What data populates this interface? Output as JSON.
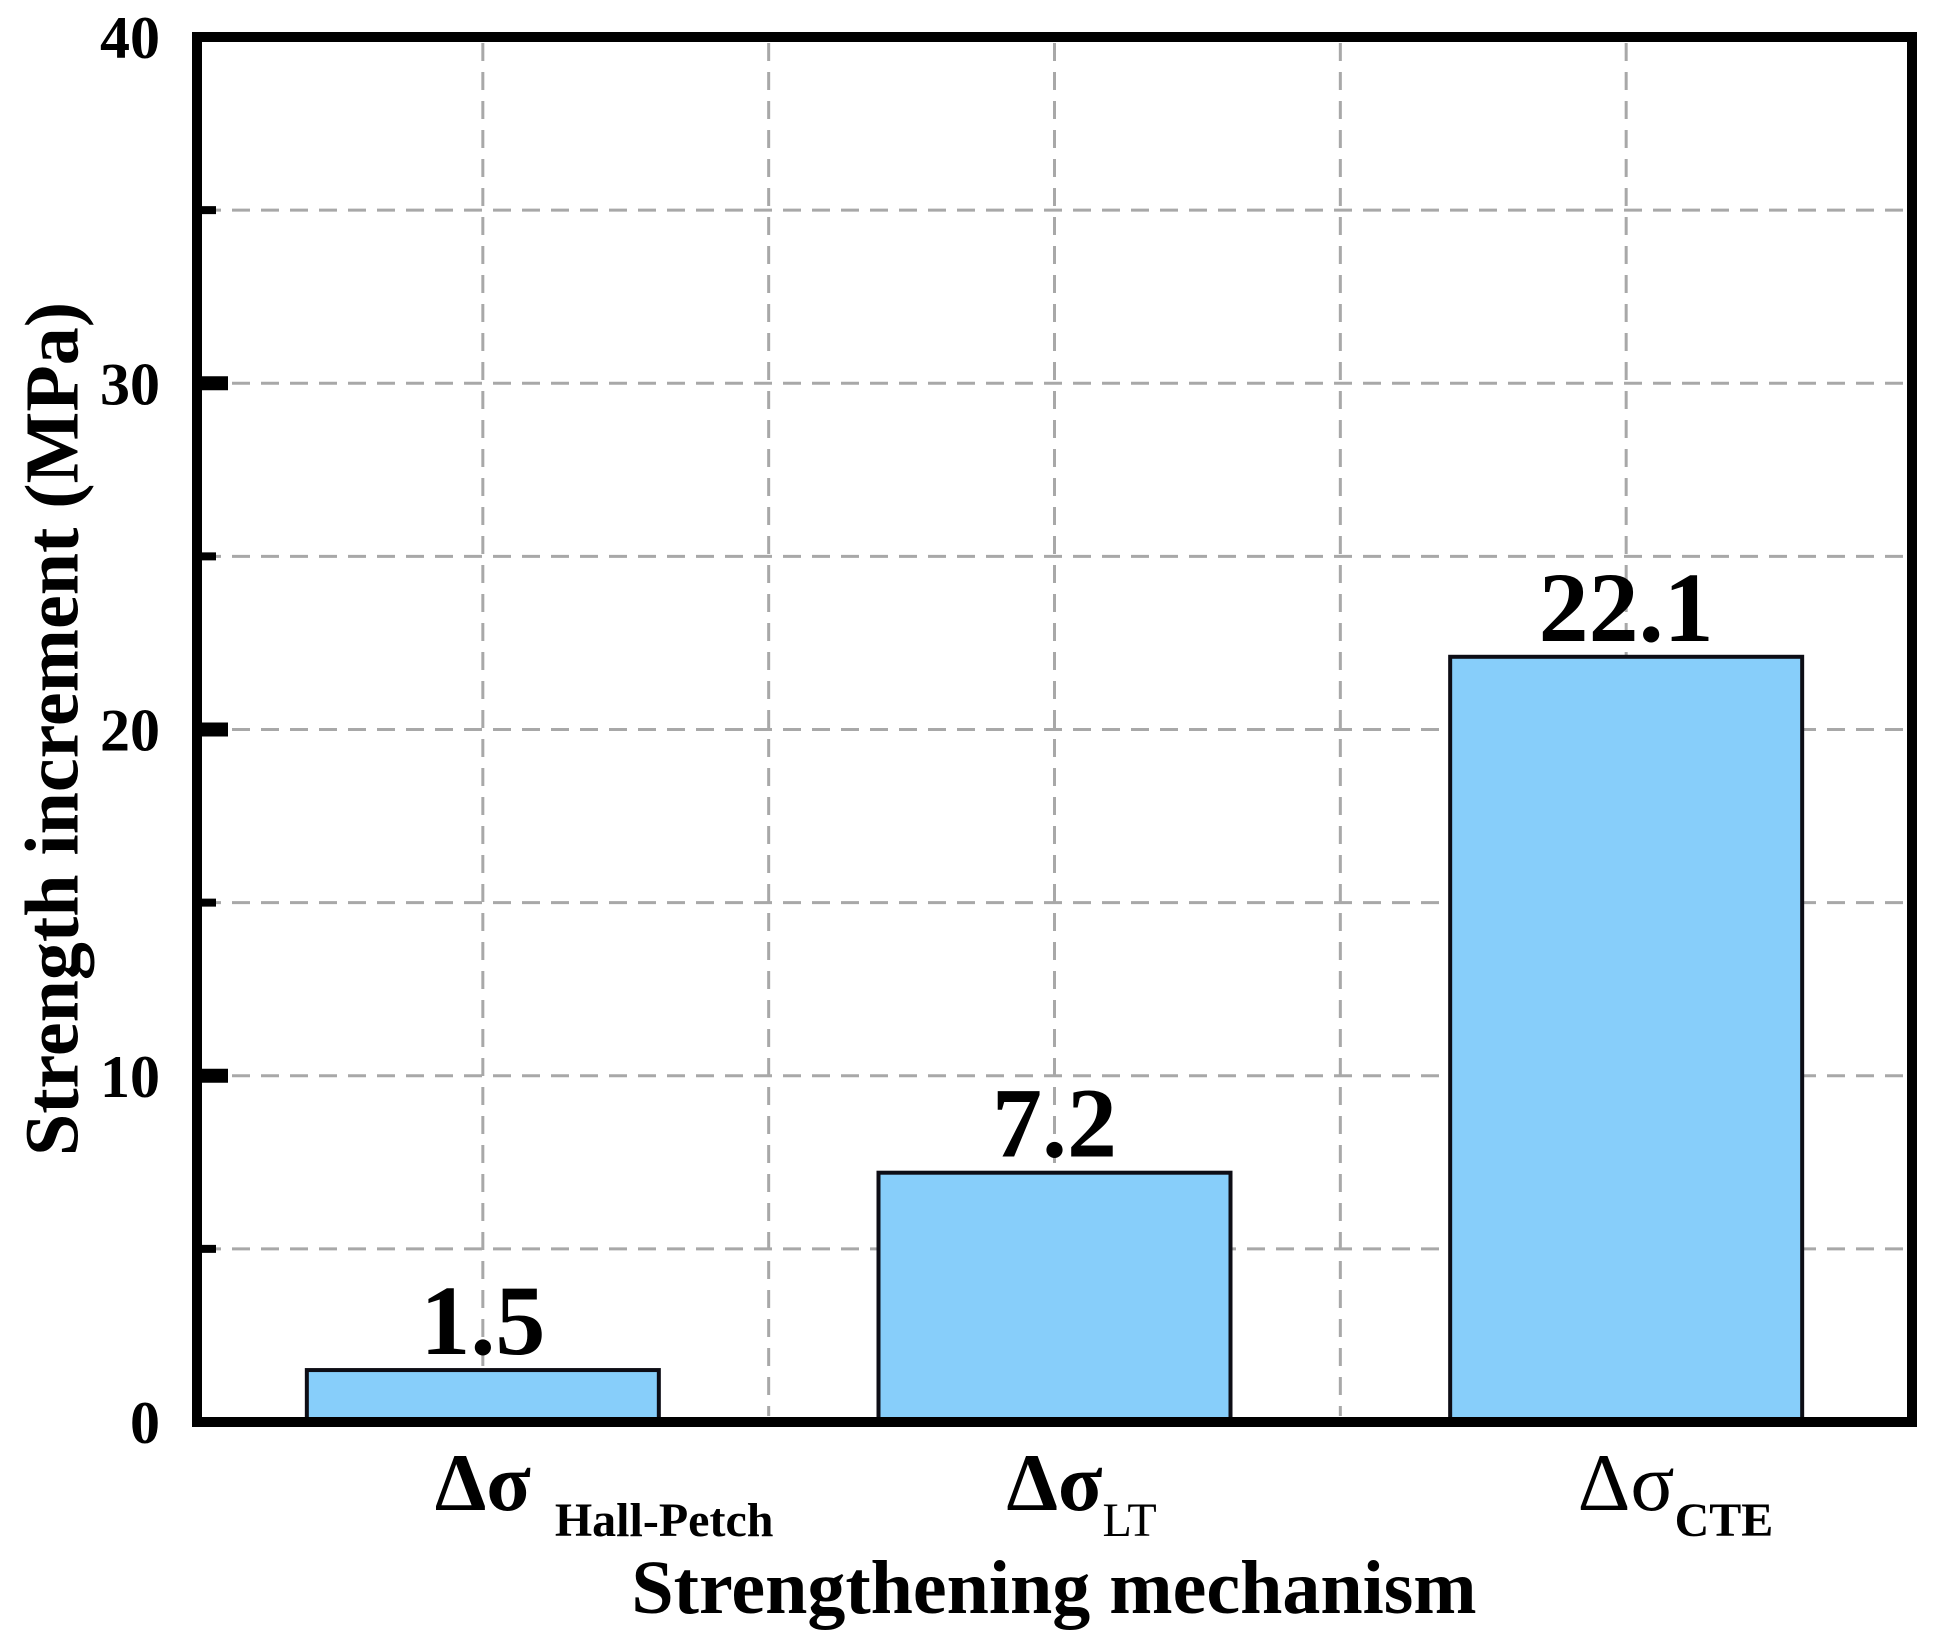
{
  "chart_data": {
    "type": "bar",
    "title": "",
    "xlabel": "Strengthening mechanism",
    "ylabel": "Strength increment (MPa)",
    "categories": [
      {
        "base": "Δσ",
        "subscript": "Hall-Petch",
        "base_bold": true,
        "sub_bold": true,
        "sub_gap": true
      },
      {
        "base": "Δσ",
        "subscript": "LT",
        "base_bold": true,
        "sub_bold": false,
        "sub_gap": false
      },
      {
        "base": "Δσ",
        "subscript": "CTE",
        "base_bold": false,
        "sub_bold": true,
        "sub_gap": false
      }
    ],
    "values": [
      1.5,
      7.2,
      22.1
    ],
    "value_labels": [
      "1.5",
      "7.2",
      "22.1"
    ],
    "ylim": [
      0,
      40
    ],
    "ytick_values": [
      0,
      10,
      20,
      30,
      40
    ],
    "ytick_labels": [
      "0",
      "10",
      "20",
      "30",
      "40"
    ],
    "minor_tick_values": [
      5,
      15,
      25,
      35
    ],
    "grid": {
      "style": "dashed",
      "horizontal_values": [
        5,
        10,
        15,
        20,
        25,
        30,
        35
      ],
      "vertical_at_half_category_steps": true
    },
    "legend": null,
    "colors": {
      "bar_fill": "#87CEFA",
      "bar_edge": "#0d0d15",
      "grid": "#a8a8a8",
      "axis": "#000000",
      "text": "#000000",
      "background": "#ffffff"
    }
  }
}
